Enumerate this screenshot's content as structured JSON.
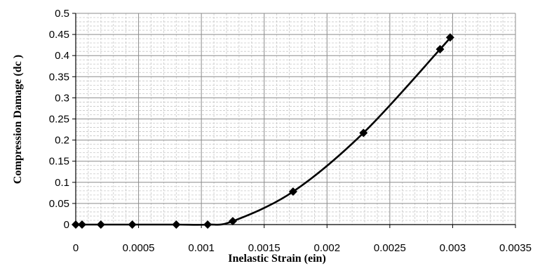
{
  "chart_data": {
    "type": "line",
    "title": "",
    "xlabel": "Inelastic Strain (ein)",
    "ylabel": "Compression Damage (dc )",
    "xlim": [
      0,
      0.0035
    ],
    "ylim": [
      0,
      0.5
    ],
    "x_ticks": [
      "0",
      "0.0005",
      "0.001",
      "0.0015",
      "0.002",
      "0.0025",
      "0.003",
      "0.0035"
    ],
    "y_ticks": [
      "0",
      "0.05",
      "0.1",
      "0.15",
      "0.2",
      "0.25",
      "0.3",
      "0.35",
      "0.4",
      "0.45",
      "0.5"
    ],
    "grid": true,
    "legend": "none",
    "series": [
      {
        "marker": "diamond",
        "color": "#000000",
        "smooth": true,
        "points": [
          {
            "x": 0,
            "y": 0
          },
          {
            "x": 5e-05,
            "y": 0
          },
          {
            "x": 0.0002,
            "y": 0
          },
          {
            "x": 0.00045,
            "y": 0
          },
          {
            "x": 0.0008,
            "y": 0
          },
          {
            "x": 0.00105,
            "y": 0
          },
          {
            "x": 0.00125,
            "y": 0.008
          },
          {
            "x": 0.00173,
            "y": 0.078
          },
          {
            "x": 0.00229,
            "y": 0.217
          },
          {
            "x": 0.0029,
            "y": 0.415
          },
          {
            "x": 0.00298,
            "y": 0.443
          }
        ]
      }
    ]
  }
}
